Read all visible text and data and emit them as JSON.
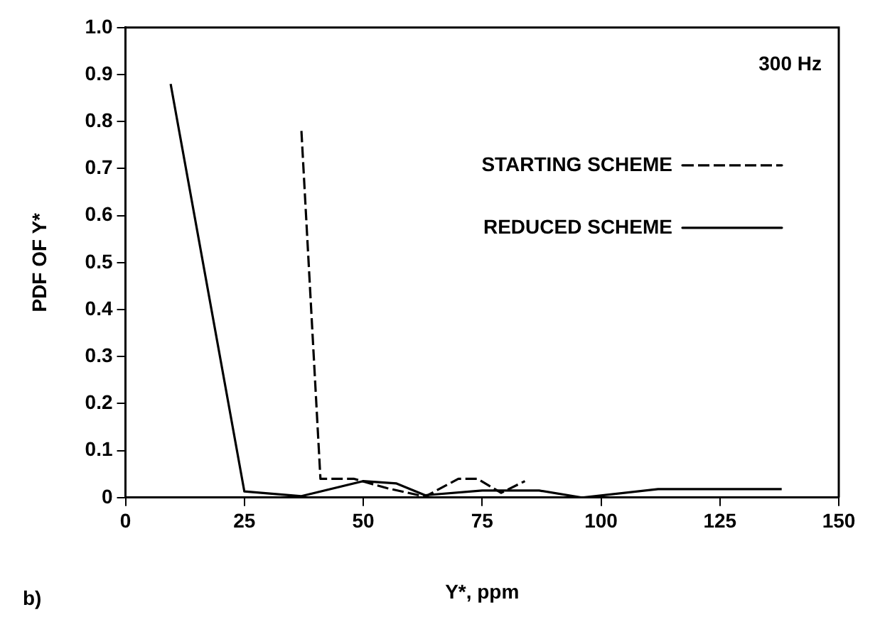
{
  "chart_data": {
    "type": "line",
    "xlabel": "Y*, ppm",
    "ylabel": "PDF OF Y*",
    "annotations": [
      "300 Hz",
      "b)"
    ],
    "xlim": [
      0,
      150
    ],
    "xticks": [
      0,
      25,
      50,
      75,
      100,
      125,
      150
    ],
    "ylim": [
      0,
      1
    ],
    "yticks": [
      0,
      0.1,
      0.2,
      0.3,
      0.4,
      0.5,
      0.6,
      0.7,
      0.8,
      0.9,
      {
        "value": 1,
        "label": "1.0"
      }
    ],
    "grid": false,
    "legend": "top right",
    "marker": "none",
    "series": [
      {
        "name": "STARTING SCHEME",
        "color": "#000000",
        "line_style": "dashed",
        "x": [
          37,
          41,
          48,
          55,
          63,
          70,
          74,
          79,
          84
        ],
        "values": [
          0.78,
          0.04,
          0.04,
          0.02,
          0.002,
          0.04,
          0.04,
          0.01,
          0.035
        ]
      },
      {
        "name": "REDUCED SCHEME",
        "color": "#000000",
        "line_style": "solid",
        "x": [
          9.5,
          25,
          37,
          50,
          57,
          63,
          75,
          87,
          96,
          112,
          125,
          138
        ],
        "values": [
          0.88,
          0.013,
          0.003,
          0.035,
          0.03,
          0.005,
          0.015,
          0.015,
          0.0,
          0.018,
          0.018,
          0.018
        ]
      }
    ]
  }
}
